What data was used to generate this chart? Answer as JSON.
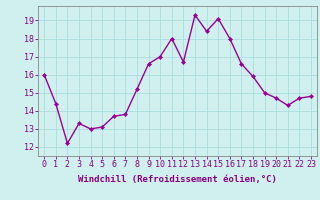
{
  "x": [
    0,
    1,
    2,
    3,
    4,
    5,
    6,
    7,
    8,
    9,
    10,
    11,
    12,
    13,
    14,
    15,
    16,
    17,
    18,
    19,
    20,
    21,
    22,
    23
  ],
  "y": [
    16.0,
    14.4,
    12.2,
    13.3,
    13.0,
    13.1,
    13.7,
    13.8,
    15.2,
    16.6,
    17.0,
    18.0,
    16.7,
    19.3,
    18.4,
    19.1,
    18.0,
    16.6,
    15.9,
    15.0,
    14.7,
    14.3,
    14.7,
    14.8
  ],
  "line_color": "#990099",
  "marker": "D",
  "markersize": 2,
  "linewidth": 1.0,
  "xlabel": "Windchill (Refroidissement éolien,°C)",
  "xlabel_fontsize": 6.5,
  "xlim": [
    -0.5,
    23.5
  ],
  "ylim": [
    11.5,
    19.8
  ],
  "yticks": [
    12,
    13,
    14,
    15,
    16,
    17,
    18,
    19
  ],
  "xticks": [
    0,
    1,
    2,
    3,
    4,
    5,
    6,
    7,
    8,
    9,
    10,
    11,
    12,
    13,
    14,
    15,
    16,
    17,
    18,
    19,
    20,
    21,
    22,
    23
  ],
  "xtick_labels": [
    "0",
    "1",
    "2",
    "3",
    "4",
    "5",
    "6",
    "7",
    "8",
    "9",
    "10",
    "11",
    "12",
    "13",
    "14",
    "15",
    "16",
    "17",
    "18",
    "19",
    "20",
    "21",
    "22",
    "23"
  ],
  "bg_color": "#cff0ee",
  "grid_color": "#aadddd",
  "tick_fontsize": 6,
  "tick_color": "#880088",
  "label_color": "#880088",
  "spine_color": "#888888"
}
